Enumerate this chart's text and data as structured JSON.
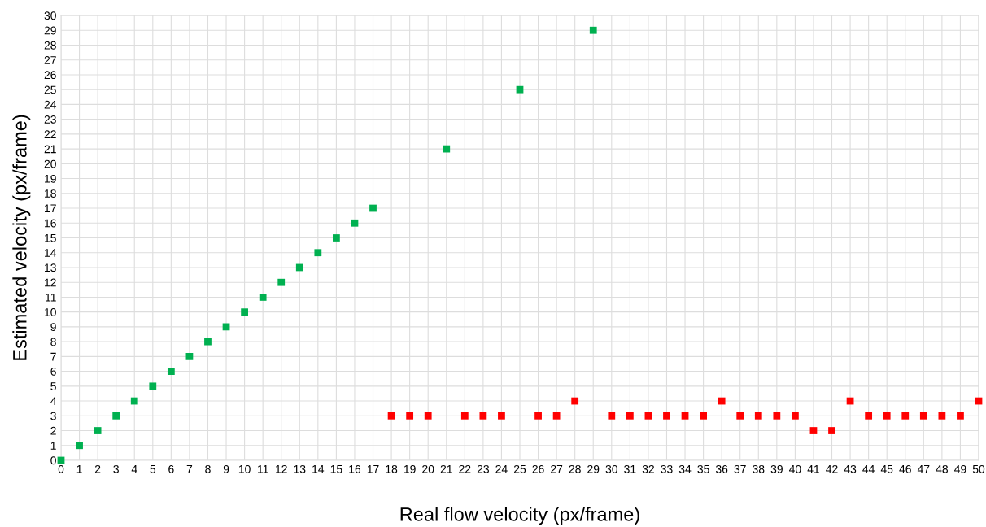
{
  "chart_data": {
    "type": "scatter",
    "xlabel": "Real flow velocity (px/frame)",
    "ylabel": "Estimated velocity (px/frame)",
    "xlim": [
      0,
      50
    ],
    "ylim": [
      0,
      30
    ],
    "xticks": [
      0,
      1,
      2,
      3,
      4,
      5,
      6,
      7,
      8,
      9,
      10,
      11,
      12,
      13,
      14,
      15,
      16,
      17,
      18,
      19,
      20,
      21,
      22,
      23,
      24,
      25,
      26,
      27,
      28,
      29,
      30,
      31,
      32,
      33,
      34,
      35,
      36,
      37,
      38,
      39,
      40,
      41,
      42,
      43,
      44,
      45,
      46,
      47,
      48,
      49,
      50
    ],
    "yticks": [
      0,
      1,
      2,
      3,
      4,
      5,
      6,
      7,
      8,
      9,
      10,
      11,
      12,
      13,
      14,
      15,
      16,
      17,
      18,
      19,
      20,
      21,
      22,
      23,
      24,
      25,
      26,
      27,
      28,
      29,
      30
    ],
    "grid": true,
    "marker": "square",
    "series": [
      {
        "color": "#00b050",
        "x": [
          0,
          1,
          2,
          3,
          4,
          5,
          6,
          7,
          8,
          9,
          10,
          11,
          12,
          13,
          14,
          15,
          16,
          17,
          21,
          25,
          29
        ],
        "values": [
          0,
          1,
          2,
          3,
          4,
          5,
          6,
          7,
          8,
          9,
          10,
          11,
          12,
          13,
          14,
          15,
          16,
          17,
          21,
          25,
          29
        ]
      },
      {
        "color": "#ff0000",
        "x": [
          18,
          19,
          20,
          22,
          23,
          24,
          26,
          27,
          28,
          30,
          31,
          32,
          33,
          34,
          35,
          36,
          37,
          38,
          39,
          40,
          41,
          42,
          43,
          44,
          45,
          46,
          47,
          48,
          49,
          50
        ],
        "values": [
          3,
          3,
          3,
          3,
          3,
          3,
          3,
          3,
          4,
          3,
          3,
          3,
          3,
          3,
          3,
          4,
          3,
          3,
          3,
          3,
          2,
          2,
          4,
          3,
          3,
          3,
          3,
          3,
          3,
          4
        ]
      }
    ]
  }
}
